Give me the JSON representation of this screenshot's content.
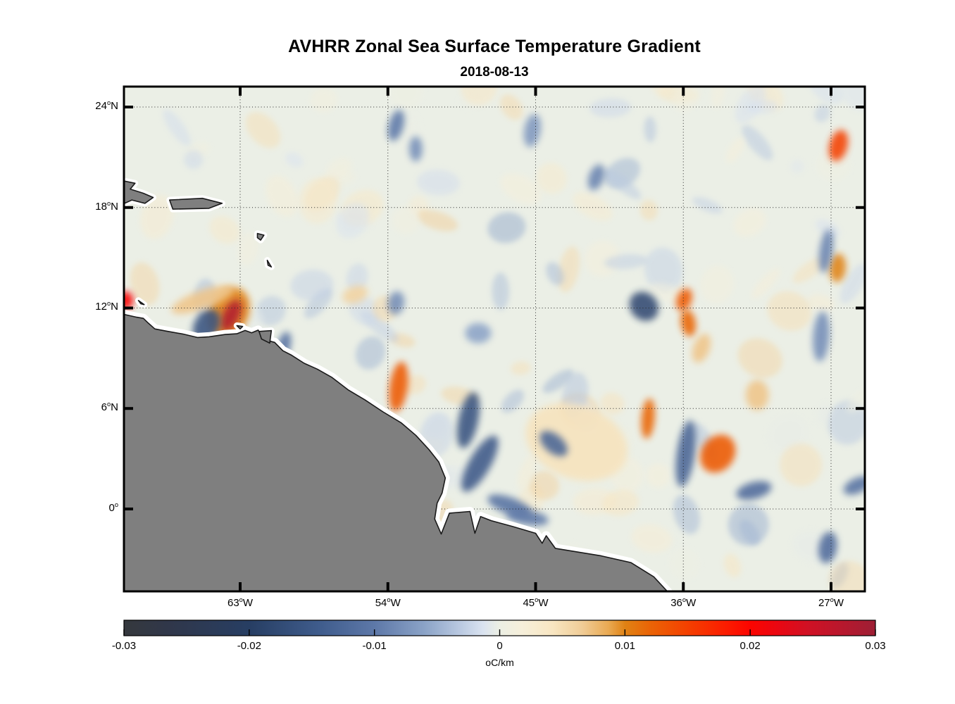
{
  "header": {
    "title": "AVHRR Zonal Sea Surface Temperature Gradient",
    "date": "2018-08-13"
  },
  "chart_data": {
    "type": "heatmap",
    "title": "AVHRR Zonal Sea Surface Temperature Gradient",
    "subtitle": "2018-08-13",
    "projection": "lon-lat geographic map, tropical Atlantic / northern South America",
    "lon_range": [
      -70.08,
      -24.94
    ],
    "lat_range": [
      -4.92,
      25.22
    ],
    "grid": "dotted graticule at labeled ticks",
    "lat_ticks": [
      {
        "v": 24,
        "pre": "24",
        "sup": "o",
        "post": "N"
      },
      {
        "v": 18,
        "pre": "18",
        "sup": "o",
        "post": "N"
      },
      {
        "v": 12,
        "pre": "12",
        "sup": "o",
        "post": "N"
      },
      {
        "v": 6,
        "pre": "6",
        "sup": "o",
        "post": "N"
      },
      {
        "v": 0,
        "pre": "0",
        "sup": "o",
        "post": ""
      }
    ],
    "lon_ticks": [
      {
        "v": -63,
        "pre": "63",
        "sup": "o",
        "post": "W"
      },
      {
        "v": -54,
        "pre": "54",
        "sup": "o",
        "post": "W"
      },
      {
        "v": -45,
        "pre": "45",
        "sup": "o",
        "post": "W"
      },
      {
        "v": -36,
        "pre": "36",
        "sup": "o",
        "post": "W"
      },
      {
        "v": -27,
        "pre": "27",
        "sup": "o",
        "post": "W"
      }
    ],
    "colorbar": {
      "min": -0.03,
      "max": 0.03,
      "ticks": [
        {
          "v": -0.03,
          "label": "-0.03"
        },
        {
          "v": -0.02,
          "label": "-0.02"
        },
        {
          "v": -0.01,
          "label": "-0.01"
        },
        {
          "v": 0,
          "label": "0"
        },
        {
          "v": 0.01,
          "label": "0.01"
        },
        {
          "v": 0.02,
          "label": "0.02"
        },
        {
          "v": 0.03,
          "label": "0.03"
        }
      ],
      "unit": {
        "sup": "o",
        "post": "C/km"
      }
    },
    "colormap_stops": [
      {
        "t": 0.0,
        "c": "#35383d"
      },
      {
        "t": 0.06,
        "c": "#30374a"
      },
      {
        "t": 0.167,
        "c": "#273e63"
      },
      {
        "t": 0.26,
        "c": "#3f5c8c"
      },
      {
        "t": 0.333,
        "c": "#5d78a8"
      },
      {
        "t": 0.4,
        "c": "#8ba3c7"
      },
      {
        "t": 0.45,
        "c": "#bccbe2"
      },
      {
        "t": 0.478,
        "c": "#dae3f0"
      },
      {
        "t": 0.5,
        "c": "#ecefe4"
      },
      {
        "t": 0.53,
        "c": "#f6efda"
      },
      {
        "t": 0.57,
        "c": "#f8e6c2"
      },
      {
        "t": 0.61,
        "c": "#f0cc96"
      },
      {
        "t": 0.645,
        "c": "#e9a952"
      },
      {
        "t": 0.667,
        "c": "#e08214"
      },
      {
        "t": 0.7,
        "c": "#ea6406"
      },
      {
        "t": 0.75,
        "c": "#f44000"
      },
      {
        "t": 0.8,
        "c": "#fb1d00"
      },
      {
        "t": 0.833,
        "c": "#fb0500"
      },
      {
        "t": 0.87,
        "c": "#ea0712"
      },
      {
        "t": 0.91,
        "c": "#d01124"
      },
      {
        "t": 0.95,
        "c": "#bb172c"
      },
      {
        "t": 1.0,
        "c": "#9d1f35"
      }
    ],
    "ocean_base_color": "#ebefe6",
    "land": {
      "fill": "#7f7f7f",
      "outline": "#1a1a1a",
      "coastal_mask": "#ffffff"
    },
    "land_polygons": {
      "mainland": [
        [
          -70.1,
          11.62
        ],
        [
          -69.3,
          11.45
        ],
        [
          -68.9,
          11.38
        ],
        [
          -68.6,
          11.1
        ],
        [
          -68.2,
          10.75
        ],
        [
          -67.5,
          10.62
        ],
        [
          -66.5,
          10.45
        ],
        [
          -65.6,
          10.24
        ],
        [
          -64.9,
          10.28
        ],
        [
          -63.9,
          10.42
        ],
        [
          -63.2,
          10.46
        ],
        [
          -62.7,
          10.66
        ],
        [
          -62.3,
          10.52
        ],
        [
          -61.9,
          10.68
        ],
        [
          -61.6,
          10.18
        ],
        [
          -61.3,
          10.05
        ],
        [
          -60.9,
          9.95
        ],
        [
          -60.4,
          9.45
        ],
        [
          -59.9,
          9.2
        ],
        [
          -59.1,
          8.7
        ],
        [
          -58.3,
          8.35
        ],
        [
          -57.4,
          7.85
        ],
        [
          -56.4,
          7.1
        ],
        [
          -55.4,
          6.52
        ],
        [
          -54.3,
          5.8
        ],
        [
          -53.2,
          5.15
        ],
        [
          -52.3,
          4.4
        ],
        [
          -51.5,
          3.55
        ],
        [
          -50.9,
          2.8
        ],
        [
          -50.5,
          1.85
        ],
        [
          -50.7,
          0.95
        ],
        [
          -51.0,
          0.35
        ],
        [
          -51.15,
          -0.6
        ],
        [
          -50.75,
          -1.5
        ],
        [
          -50.25,
          -0.25
        ],
        [
          -49.0,
          -0.15
        ],
        [
          -48.7,
          -1.45
        ],
        [
          -48.35,
          -0.45
        ],
        [
          -47.7,
          -0.7
        ],
        [
          -46.4,
          -1.05
        ],
        [
          -45.0,
          -1.45
        ],
        [
          -44.6,
          -2.05
        ],
        [
          -44.35,
          -1.6
        ],
        [
          -43.8,
          -2.35
        ],
        [
          -41.0,
          -2.8
        ],
        [
          -39.2,
          -3.2
        ],
        [
          -37.8,
          -4.05
        ],
        [
          -36.95,
          -4.95
        ],
        [
          -36.85,
          -5.2
        ],
        [
          -70.2,
          -5.2
        ]
      ],
      "islands": [
        [
          [
            -70.15,
            19.6
          ],
          [
            -69.4,
            19.45
          ],
          [
            -69.7,
            19.1
          ],
          [
            -68.9,
            18.85
          ],
          [
            -68.3,
            18.6
          ],
          [
            -68.8,
            18.25
          ],
          [
            -69.6,
            18.45
          ],
          [
            -70.15,
            18.2
          ]
        ],
        [
          [
            -67.3,
            18.45
          ],
          [
            -65.3,
            18.55
          ],
          [
            -64.1,
            18.25
          ],
          [
            -64.9,
            17.95
          ],
          [
            -67.1,
            17.9
          ]
        ],
        [
          [
            -61.95,
            16.45
          ],
          [
            -61.55,
            16.35
          ],
          [
            -61.75,
            16.05
          ],
          [
            -61.95,
            16.2
          ]
        ],
        [
          [
            -61.35,
            14.85
          ],
          [
            -61.1,
            14.45
          ],
          [
            -61.3,
            14.55
          ]
        ],
        [
          [
            -69.2,
            12.45
          ],
          [
            -68.85,
            12.2
          ],
          [
            -69.05,
            12.25
          ]
        ],
        [
          [
            -61.85,
            10.6
          ],
          [
            -61.1,
            10.65
          ],
          [
            -61.2,
            9.9
          ],
          [
            -61.7,
            10.15
          ]
        ],
        [
          [
            -63.2,
            10.95
          ],
          [
            -62.85,
            10.9
          ],
          [
            -63.0,
            10.75
          ]
        ]
      ]
    },
    "features": [
      {
        "name": "warm-halo-margarita",
        "lon": -63.7,
        "lat": 11.7,
        "rx": 1.2,
        "ry": 1.6,
        "rot": 25,
        "v": 0.01
      },
      {
        "name": "strong-warm-eddy-margarita",
        "lon": -63.55,
        "lat": 11.55,
        "rx": 0.5,
        "ry": 1.0,
        "rot": 25,
        "v": 0.028
      },
      {
        "name": "cold-blob-65w-11n",
        "lon": -65.05,
        "lat": 10.95,
        "rx": 0.75,
        "ry": 1.05,
        "rot": 30,
        "v": -0.016
      },
      {
        "name": "warm-band-65w-12n",
        "lon": -65.3,
        "lat": 12.5,
        "rx": 2.0,
        "ry": 0.55,
        "rot": -20,
        "v": 0.007
      },
      {
        "name": "warm-edge-70w-12n",
        "lon": -70.0,
        "lat": 12.45,
        "rx": 0.5,
        "ry": 0.55,
        "rot": 0,
        "v": 0.02
      },
      {
        "name": "cold-trinidad-south",
        "lon": -60.35,
        "lat": 9.7,
        "rx": 0.4,
        "ry": 0.9,
        "rot": 15,
        "v": -0.011
      },
      {
        "name": "warm-streak-54w-7n",
        "lon": -53.35,
        "lat": 7.3,
        "rx": 0.55,
        "ry": 1.5,
        "rot": 8,
        "v": 0.013
      },
      {
        "name": "cold-guiana-streak-a",
        "lon": -49.1,
        "lat": 5.3,
        "rx": 0.6,
        "ry": 1.7,
        "rot": 12,
        "v": -0.016
      },
      {
        "name": "cold-guiana-streak-b",
        "lon": -48.4,
        "lat": 2.7,
        "rx": 0.65,
        "ry": 1.9,
        "rot": 30,
        "v": -0.015
      },
      {
        "name": "cold-amazon-coast",
        "lon": -46.6,
        "lat": 0.2,
        "rx": 1.4,
        "ry": 0.5,
        "rot": 20,
        "v": -0.011
      },
      {
        "name": "cold-amazon-shelf",
        "lon": -45.5,
        "lat": -0.5,
        "rx": 1.3,
        "ry": 0.45,
        "rot": 10,
        "v": -0.01
      },
      {
        "name": "warm-field-centre",
        "lon": -42.5,
        "lat": 4.0,
        "rx": 3.2,
        "ry": 2.2,
        "rot": 20,
        "v": 0.0045
      },
      {
        "name": "cold-diag-44w-4n",
        "lon": -43.9,
        "lat": 3.9,
        "rx": 1.0,
        "ry": 0.55,
        "rot": 40,
        "v": -0.013
      },
      {
        "name": "warm-streak-38w-5n",
        "lon": -38.15,
        "lat": 5.4,
        "rx": 0.4,
        "ry": 1.2,
        "rot": 5,
        "v": 0.012
      },
      {
        "name": "cold-streak-36w-3n",
        "lon": -35.85,
        "lat": 3.3,
        "rx": 0.55,
        "ry": 2.0,
        "rot": 8,
        "v": -0.013
      },
      {
        "name": "warm-blob-34w-3n",
        "lon": -33.9,
        "lat": 3.3,
        "rx": 1.0,
        "ry": 1.2,
        "rot": 35,
        "v": 0.013
      },
      {
        "name": "cold-blob-38w-12n",
        "lon": -38.4,
        "lat": 12.1,
        "rx": 0.95,
        "ry": 0.8,
        "rot": 45,
        "v": -0.018
      },
      {
        "name": "warm-chain-36w-12n",
        "lon": -35.95,
        "lat": 12.5,
        "rx": 0.45,
        "ry": 0.7,
        "rot": 20,
        "v": 0.013
      },
      {
        "name": "warm-chain-36w-11n",
        "lon": -35.7,
        "lat": 11.1,
        "rx": 0.45,
        "ry": 0.8,
        "rot": -10,
        "v": 0.012
      },
      {
        "name": "warm-chain-35w-10n",
        "lon": -34.9,
        "lat": 9.6,
        "rx": 0.5,
        "ry": 0.9,
        "rot": 20,
        "v": 0.007
      },
      {
        "name": "warm-blob-26w-22n",
        "lon": -26.55,
        "lat": 21.7,
        "rx": 0.55,
        "ry": 0.95,
        "rot": 15,
        "v": 0.015
      },
      {
        "name": "warm-blob-26w-14n",
        "lon": -26.6,
        "lat": 14.4,
        "rx": 0.5,
        "ry": 0.85,
        "rot": 5,
        "v": 0.01
      },
      {
        "name": "cold-equator-31w",
        "lon": -31.7,
        "lat": 1.1,
        "rx": 1.1,
        "ry": 0.5,
        "rot": -15,
        "v": -0.012
      },
      {
        "name": "cold-27w-2s",
        "lon": -27.2,
        "lat": -2.3,
        "rx": 0.55,
        "ry": 0.95,
        "rot": 10,
        "v": -0.012
      },
      {
        "name": "cold-25w-1n",
        "lon": -25.4,
        "lat": 1.4,
        "rx": 0.9,
        "ry": 0.45,
        "rot": -25,
        "v": -0.011
      },
      {
        "name": "cold-wisp-53w-23n",
        "lon": -53.5,
        "lat": 22.9,
        "rx": 0.45,
        "ry": 0.95,
        "rot": 15,
        "v": -0.01
      },
      {
        "name": "cold-wisp-52w-21n",
        "lon": -52.3,
        "lat": 21.5,
        "rx": 0.4,
        "ry": 0.75,
        "rot": 0,
        "v": -0.008
      },
      {
        "name": "cold-wisp-45w-22n",
        "lon": -45.2,
        "lat": 22.6,
        "rx": 0.5,
        "ry": 1.0,
        "rot": 10,
        "v": -0.007
      },
      {
        "name": "cold-wisp-41w-20n",
        "lon": -41.3,
        "lat": 19.8,
        "rx": 0.45,
        "ry": 0.8,
        "rot": 20,
        "v": -0.009
      },
      {
        "name": "cold-streak-27w-15n",
        "lon": -27.3,
        "lat": 15.4,
        "rx": 0.4,
        "ry": 1.3,
        "rot": 8,
        "v": -0.009
      },
      {
        "name": "cold-streak-27w-10n",
        "lon": -27.6,
        "lat": 10.3,
        "rx": 0.5,
        "ry": 1.5,
        "rot": 4,
        "v": -0.008
      },
      {
        "name": "cold-blob-54w-12n",
        "lon": -53.5,
        "lat": 12.3,
        "rx": 0.5,
        "ry": 0.7,
        "rot": 10,
        "v": -0.008
      },
      {
        "name": "warm-wisp-56w-13n",
        "lon": -56.0,
        "lat": 12.8,
        "rx": 0.8,
        "ry": 0.5,
        "rot": -20,
        "v": 0.006
      },
      {
        "name": "cold-blob-48w-10n",
        "lon": -48.5,
        "lat": 10.5,
        "rx": 0.8,
        "ry": 0.6,
        "rot": 0,
        "v": -0.006
      },
      {
        "name": "warm-blob-31w-7n",
        "lon": -31.5,
        "lat": 6.8,
        "rx": 0.7,
        "ry": 0.9,
        "rot": 0,
        "v": 0.007
      }
    ],
    "noise_texture": {
      "seed": 20180813,
      "count": 150,
      "vmin": -0.0055,
      "vmax": 0.0065,
      "rmin": 0.35,
      "rmax": 1.4,
      "opacity": 0.5
    }
  }
}
